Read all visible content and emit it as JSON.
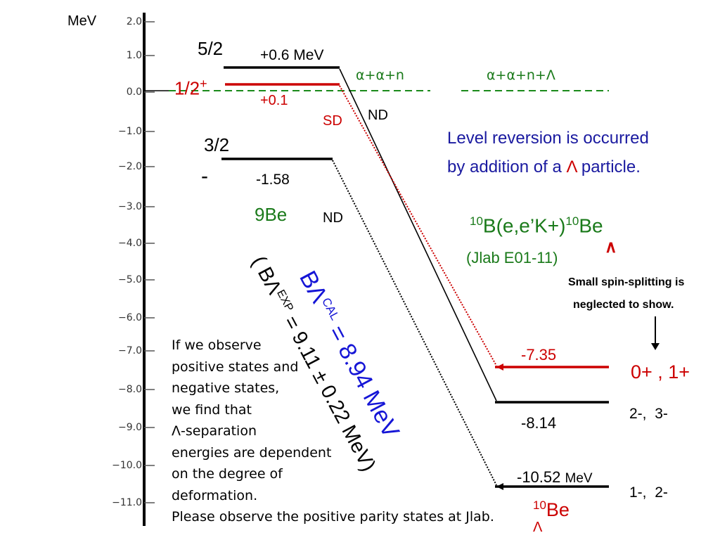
{
  "axis": {
    "unit_label": "MeV",
    "ticks": [
      "2.0",
      "1.0",
      "0.0",
      "−1.0",
      "−2.0",
      "−3.0",
      "−4.0",
      "−5.0",
      "−6.0",
      "−7.0",
      "−8.0",
      "−9.0",
      "−10.0",
      "−11.0"
    ]
  },
  "be9": {
    "level_5_2_label": "5/2",
    "level_5_2_energy": "+0.6 MeV",
    "level_1_2_label": "1/2",
    "level_1_2_parity": "+",
    "level_1_2_energy": "+0.1",
    "level_3_2_label": "3/2",
    "level_3_2_parity": "-",
    "level_3_2_energy": "-1.58",
    "nucleus_label": "9Be",
    "sd_label": "SD",
    "nd_label_upper": "ND",
    "nd_label_lower": "ND"
  },
  "thresholds": {
    "left": "α+α+n",
    "right": "α+α+n+Λ"
  },
  "reversion_note": {
    "line1": "Level reversion is occurred",
    "line2_prefix": "by addition of a ",
    "line2_lambda": "Λ",
    "line2_suffix": " particle."
  },
  "reaction": {
    "mass_in": "10",
    "reaction_text": "B(e,e’K+)",
    "mass_out": "10",
    "product": "Be",
    "lambda_mark": "∧",
    "experiment": "(Jlab E01-11)"
  },
  "spin_note": {
    "line1": "Small spin-splitting is",
    "line2": "neglected to show."
  },
  "be10": {
    "level_red_energy": "-7.35",
    "level_red_spins": "0+ , 1+",
    "level_mid_energy": "-8.14",
    "level_mid_spins_a": "2-,",
    "level_mid_spins_b": "3-",
    "level_low_energy": "-10.52",
    "level_low_unit": "MeV",
    "level_low_spins_a": "1-,",
    "level_low_spins_b": "2-",
    "nucleus_mass": "10",
    "nucleus_symbol": "Be",
    "nucleus_lambda": "Λ"
  },
  "binding": {
    "cal_symbol": "BΛ",
    "cal_sup": "CAL",
    "cal_value": "= 8.94 MeV",
    "exp_open": "(",
    "exp_symbol": "BΛ",
    "exp_sup": "EXP",
    "exp_value": "= 9.11",
    "exp_err": "±",
    "exp_close": "0.22 MeV)"
  },
  "deformation_note": [
    "If we observe",
    "positive states and",
    "negative states,",
    "we find that",
    "Λ-separation",
    "energies are dependent",
    "on the degree of",
    "deformation.",
    "Please observe the positive parity states at Jlab."
  ],
  "colors": {
    "red": "#cc0000",
    "green_dashed": "#1a8a1a",
    "green_text": "#1a7a1a",
    "blue_text": "#1a1aa0",
    "blue_binding": "#1515d6"
  }
}
